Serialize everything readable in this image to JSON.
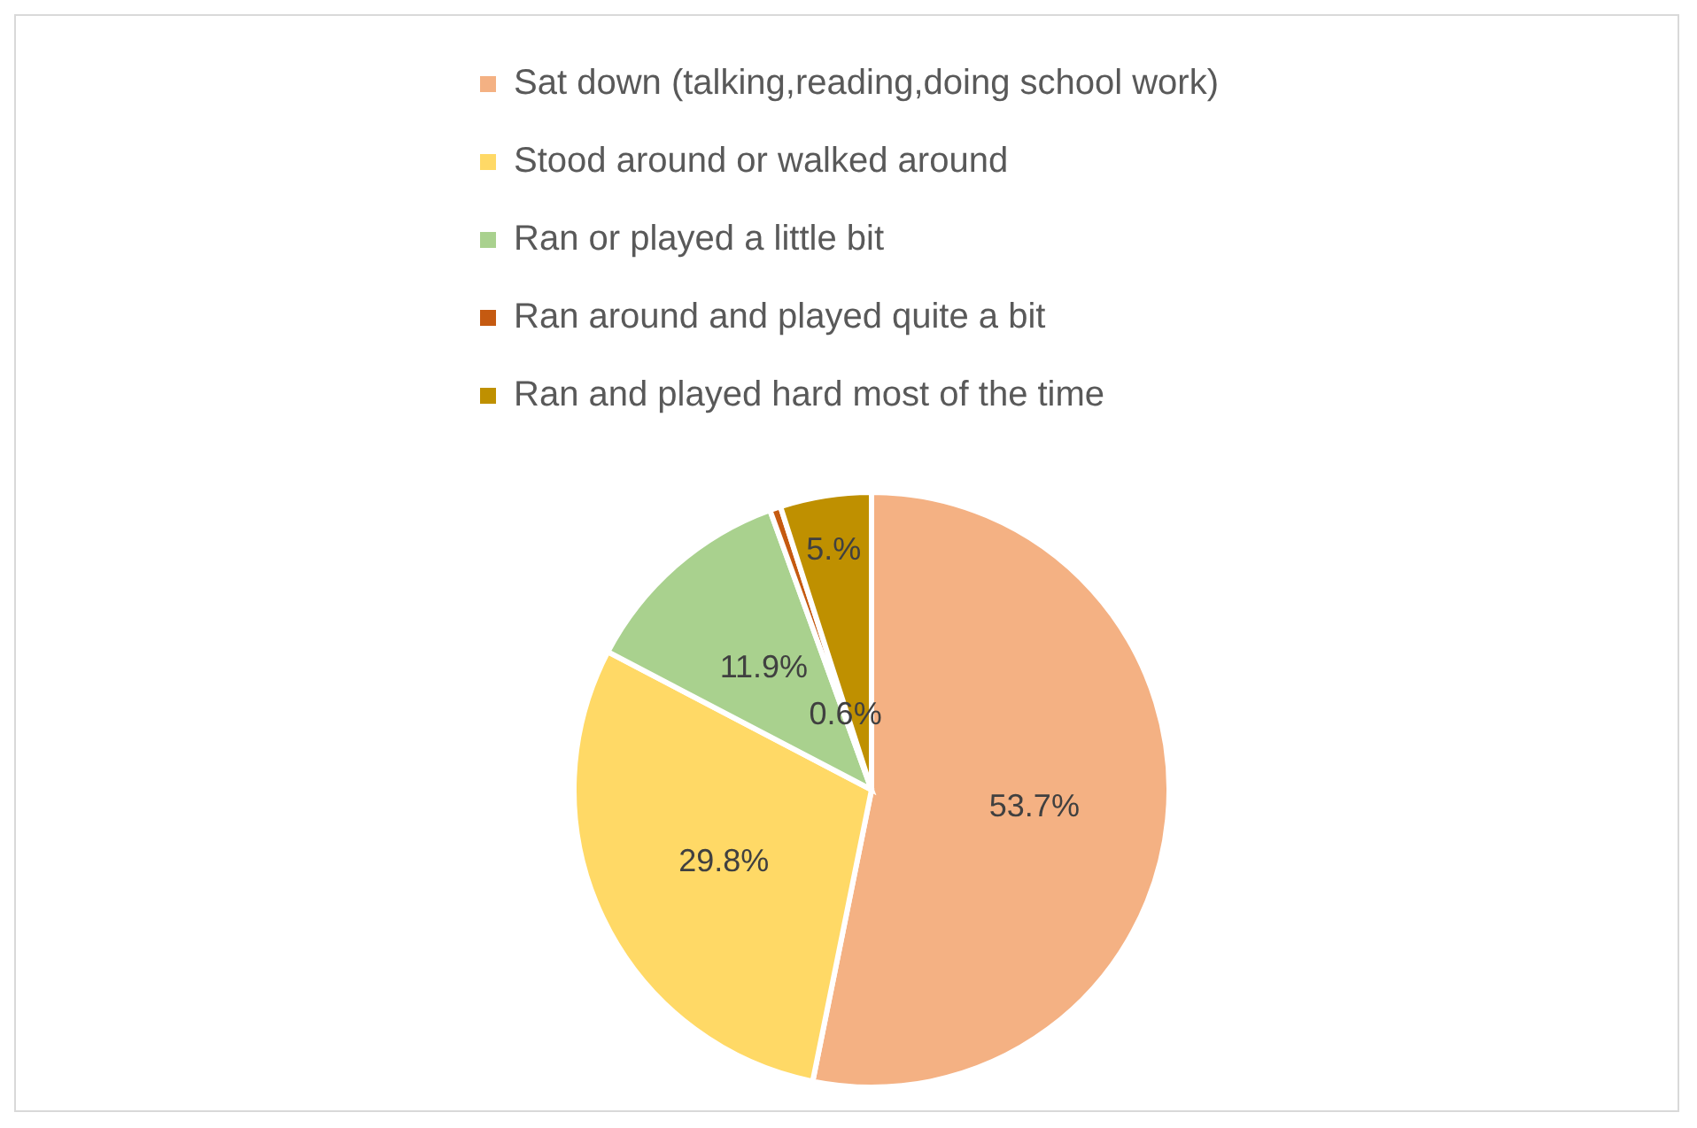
{
  "chart_data": {
    "type": "pie",
    "categories": [
      "Sat down (talking,reading,doing school work)",
      "Stood around or walked around",
      "Ran or played a little bit",
      "Ran around and played quite a bit",
      "Ran and played hard most of the time"
    ],
    "values": [
      53.7,
      29.8,
      11.9,
      0.6,
      5
    ],
    "colors": [
      "#f4b183",
      "#ffd966",
      "#a9d18e",
      "#c55a11",
      "#bf9000"
    ],
    "value_labels": [
      "53.7%",
      "29.8%",
      "11.9%",
      "0.6%",
      "5.%"
    ],
    "legend": "top"
  }
}
